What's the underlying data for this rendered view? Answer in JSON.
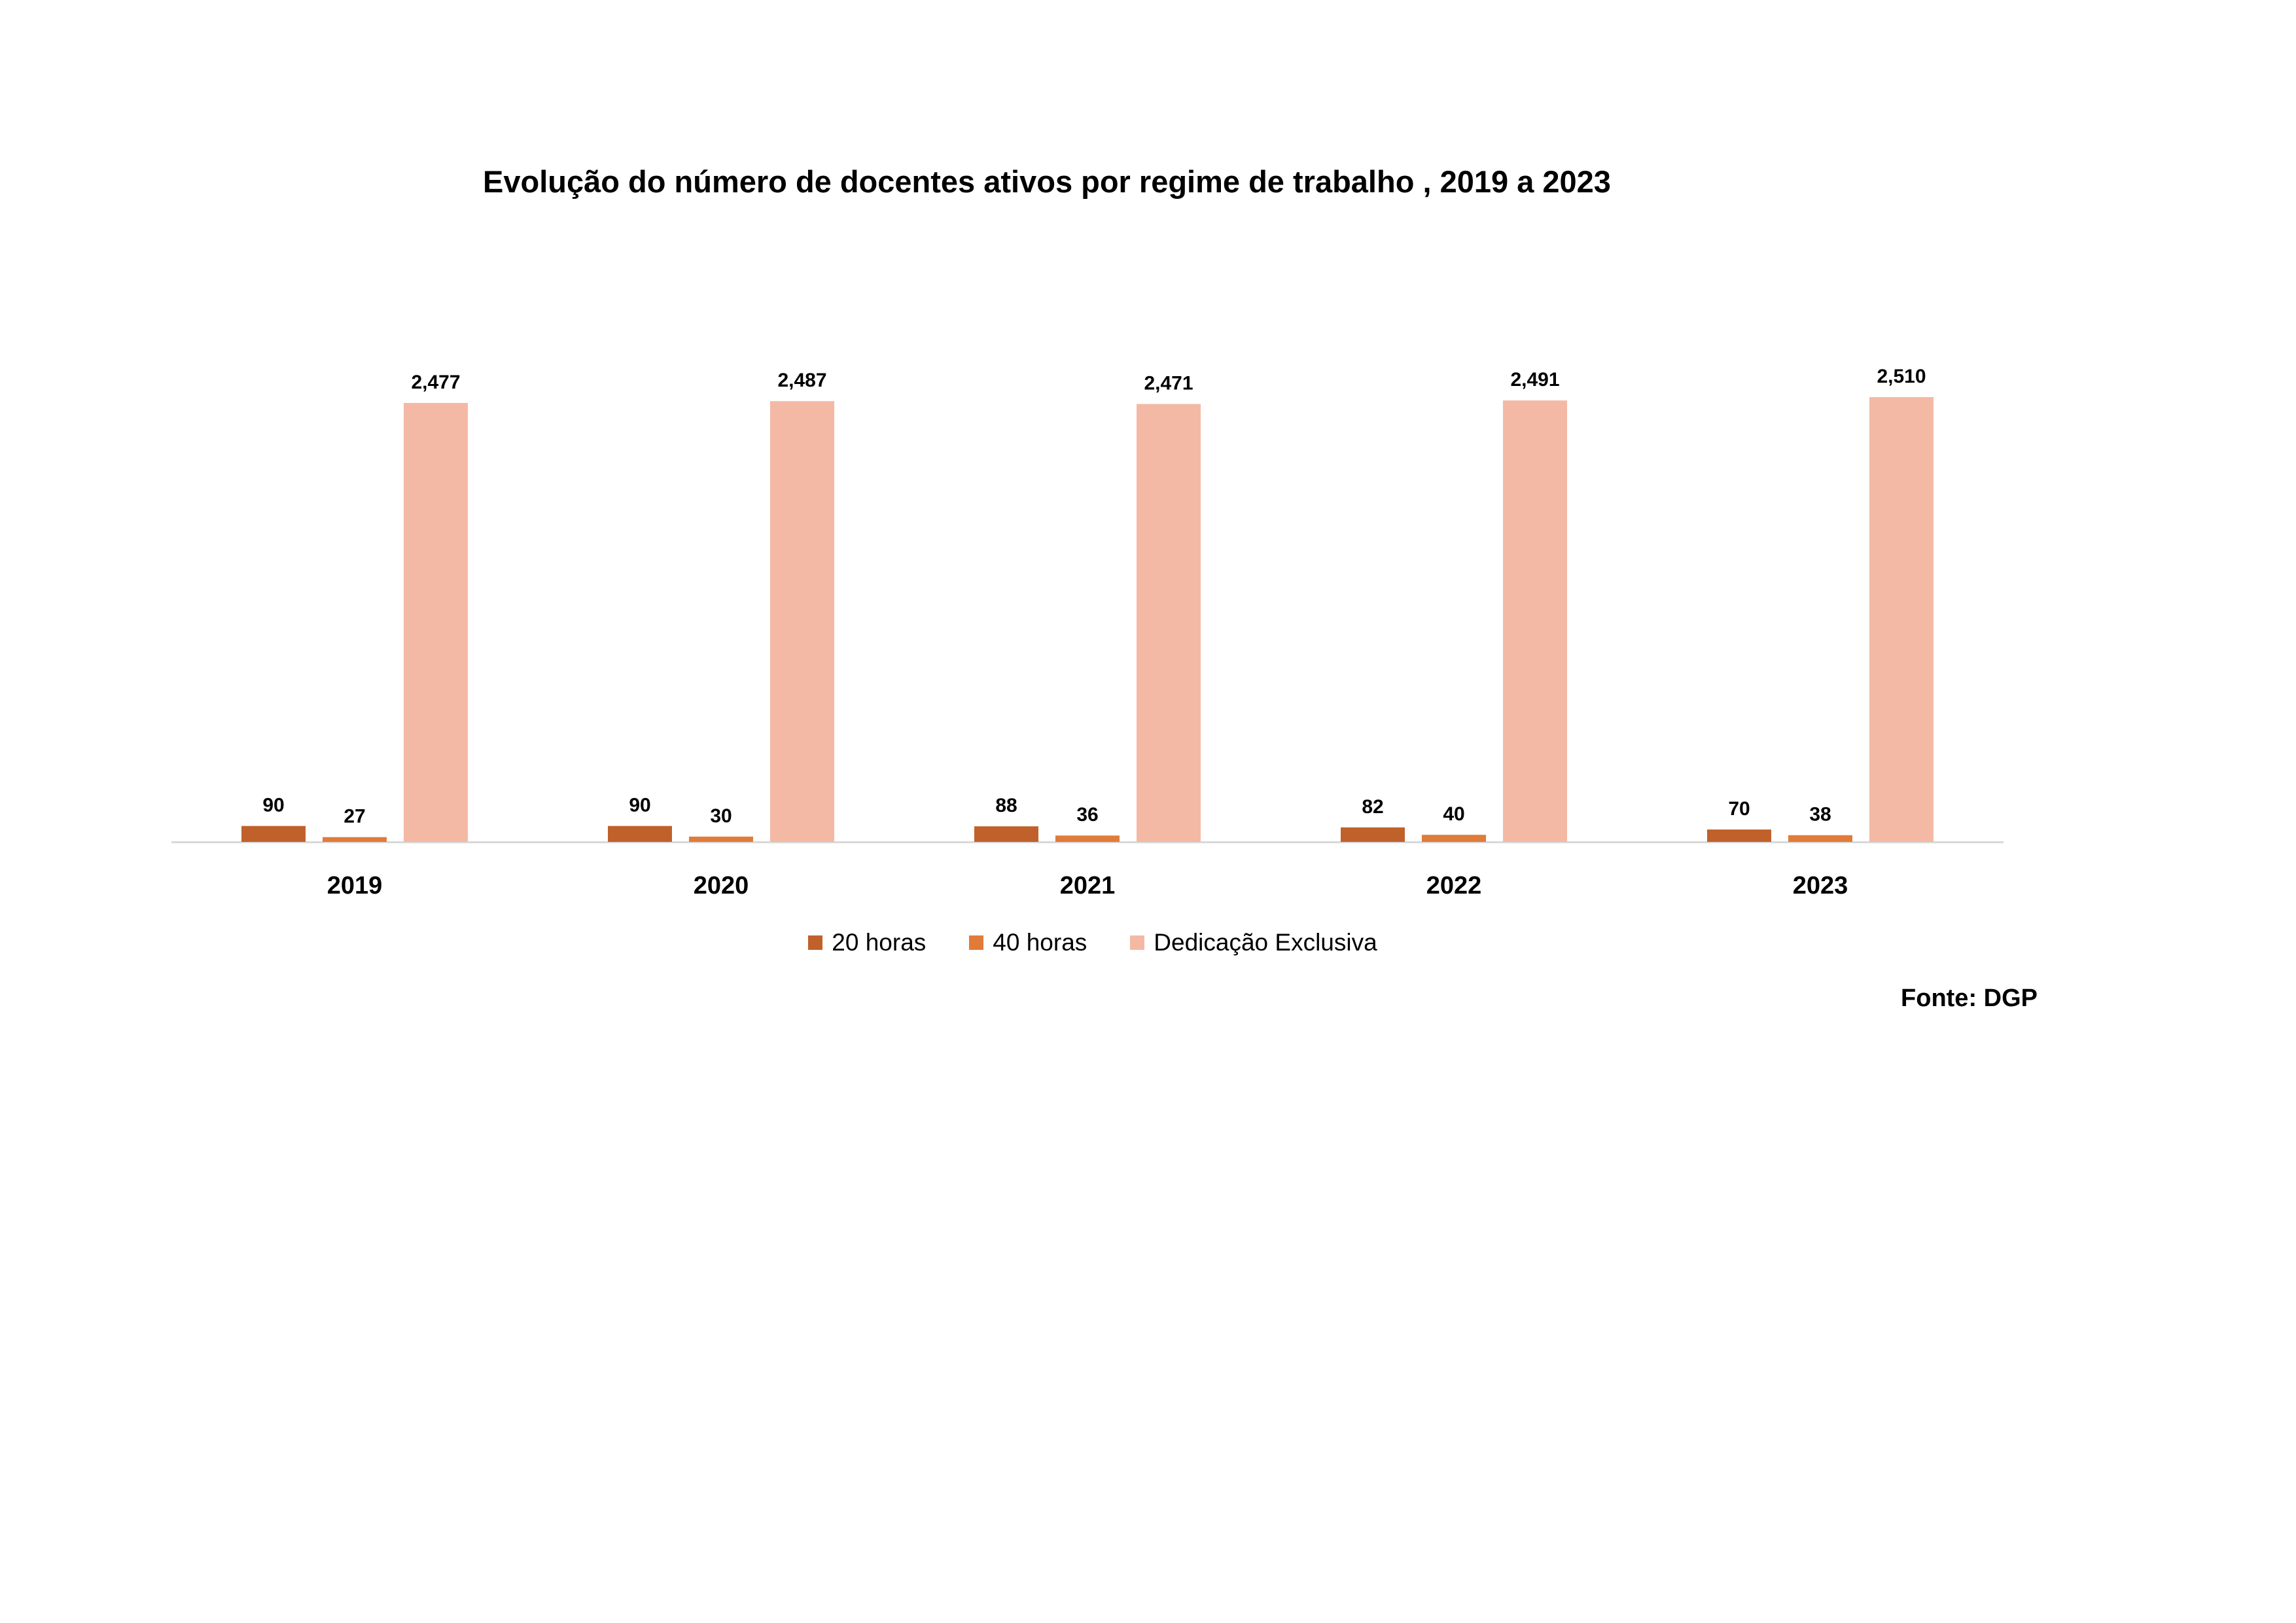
{
  "chart_data": {
    "type": "bar",
    "title": "Evolução do número de docentes ativos por regime de trabalho , 2019 a 2023",
    "categories": [
      "2019",
      "2020",
      "2021",
      "2022",
      "2023"
    ],
    "series": [
      {
        "name": "20 horas",
        "color": "#C0612B",
        "values": [
          90,
          90,
          88,
          82,
          70
        ],
        "labels": [
          "90",
          "90",
          "88",
          "82",
          "70"
        ]
      },
      {
        "name": "40 horas",
        "color": "#E07B39",
        "values": [
          27,
          30,
          36,
          40,
          38
        ],
        "labels": [
          "27",
          "30",
          "36",
          "40",
          "38"
        ]
      },
      {
        "name": "Dedicação Exclusiva",
        "color": "#F4B9A4",
        "values": [
          2477,
          2487,
          2471,
          2491,
          2510
        ],
        "labels": [
          "2,477",
          "2,487",
          "2,471",
          "2,491",
          "2,510"
        ]
      }
    ],
    "ylim": [
      0,
      2510
    ],
    "grid": false,
    "legend": "bottom",
    "axis_color": "#D9D9D9"
  },
  "source_text": "Fonte: DGP"
}
